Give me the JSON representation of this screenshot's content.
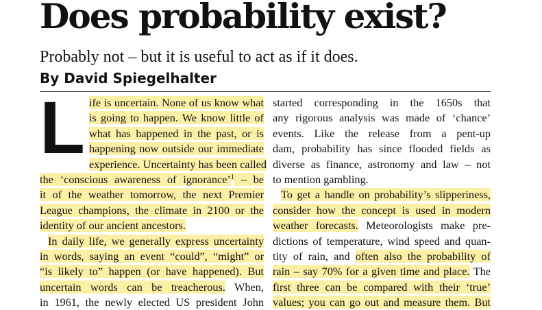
{
  "header": {
    "title": "Does probability exist?",
    "subtitle": "Probably not – but it is useful to act as if it does.",
    "byline": "By David Spiegelhalter"
  },
  "columns": [
    {
      "drop_cap": "L",
      "lines": [
        {
          "segments": [
            {
              "text": "ife is uncertain. None of us know what",
              "highlight": true
            }
          ]
        },
        {
          "segments": [
            {
              "text": "is going to happen. We know little of",
              "highlight": true
            }
          ]
        },
        {
          "segments": [
            {
              "text": "what has happened in the past, or is",
              "highlight": true
            }
          ]
        },
        {
          "segments": [
            {
              "text": "happening now outside our immediate",
              "highlight": true
            }
          ]
        },
        {
          "segments": [
            {
              "text": "experience. Uncertainty has been called",
              "highlight": true
            }
          ]
        },
        {
          "segments": [
            {
              "text": "the ‘conscious awareness of ignorance’",
              "highlight": true
            },
            {
              "text": "1",
              "highlight": true,
              "superscript": true
            },
            {
              "text": " – be",
              "highlight": true
            }
          ]
        },
        {
          "segments": [
            {
              "text": "it of the weather tomorrow, the next Premier",
              "highlight": true
            }
          ]
        },
        {
          "segments": [
            {
              "text": "League champions, the climate in 2100 or the",
              "highlight": true
            }
          ]
        },
        {
          "segments": [
            {
              "text": "identity of our ancient ancestors.",
              "highlight": true
            }
          ],
          "paragraph_end": true
        },
        {
          "segments": [
            {
              "text": "In daily life, we generally express uncertainty",
              "highlight": true
            }
          ],
          "indent": true
        },
        {
          "segments": [
            {
              "text": "in words, saying an event “could”, “might” or",
              "highlight": true
            }
          ]
        },
        {
          "segments": [
            {
              "text": "“is likely to” happen (or have happened). But",
              "highlight": true
            }
          ]
        },
        {
          "segments": [
            {
              "text": "uncertain words can be treacherous.",
              "highlight": true
            },
            {
              "text": " When,",
              "highlight": false
            }
          ]
        },
        {
          "segments": [
            {
              "text": "in 1961, the newly elected US president John",
              "highlight": false
            }
          ]
        }
      ]
    },
    {
      "lines": [
        {
          "segments": [
            {
              "text": "started corresponding in the 1650s that",
              "highlight": false
            }
          ]
        },
        {
          "segments": [
            {
              "text": "any rigorous analysis was made of ‘chance’",
              "highlight": false
            }
          ]
        },
        {
          "segments": [
            {
              "text": "events. Like the release from a pent-up",
              "highlight": false
            }
          ]
        },
        {
          "segments": [
            {
              "text": "dam, probability has since flooded fields as",
              "highlight": false
            }
          ]
        },
        {
          "segments": [
            {
              "text": "diverse as finance, astronomy and law – not",
              "highlight": false
            }
          ]
        },
        {
          "segments": [
            {
              "text": "to mention gambling.",
              "highlight": false
            }
          ],
          "paragraph_end": true
        },
        {
          "segments": [
            {
              "text": "To get a handle on probability’s slipperiness,",
              "highlight": true
            }
          ],
          "indent": true
        },
        {
          "segments": [
            {
              "text": "consider how the concept is used in modern",
              "highlight": true
            }
          ]
        },
        {
          "segments": [
            {
              "text": "weather forecasts.",
              "highlight": true
            },
            {
              "text": " Meteorologists make pre-",
              "highlight": false
            }
          ]
        },
        {
          "segments": [
            {
              "text": "dictions of temperature, wind speed and quan-",
              "highlight": false
            }
          ]
        },
        {
          "segments": [
            {
              "text": "tity of rain, and ",
              "highlight": false
            },
            {
              "text": "often also the probability of",
              "highlight": true
            }
          ]
        },
        {
          "segments": [
            {
              "text": "rain – say 70% for a given time and place.",
              "highlight": true
            },
            {
              "text": " The",
              "highlight": false
            }
          ]
        },
        {
          "segments": [
            {
              "text": "first three can be compared with their ‘true’",
              "highlight": true
            }
          ]
        },
        {
          "segments": [
            {
              "text": "values; you can go out and measure them. But",
              "highlight": true
            }
          ]
        }
      ]
    }
  ]
}
